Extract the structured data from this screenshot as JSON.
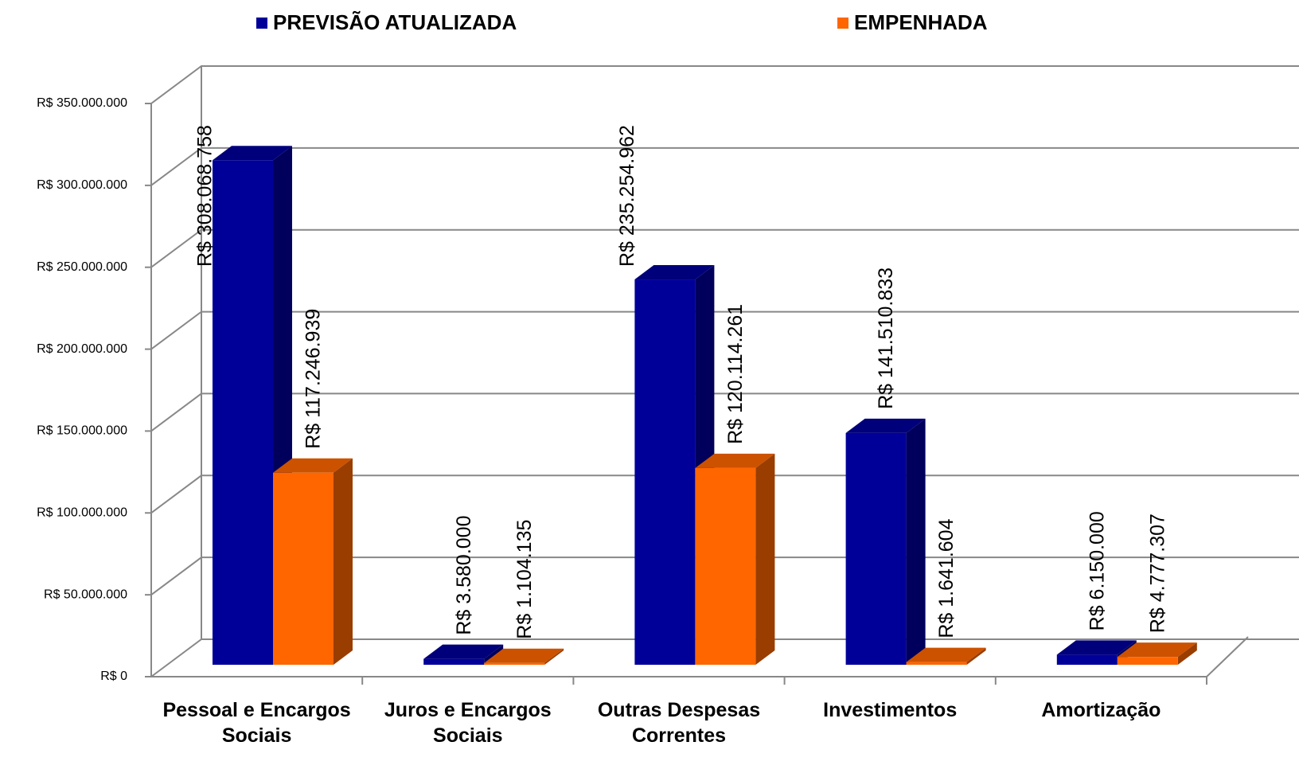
{
  "chart_data": {
    "type": "bar3d",
    "categories": [
      "Pessoal e Encargos Sociais",
      "Juros e Encargos Sociais",
      "Outras Despesas Correntes",
      "Investimentos",
      "Amortização"
    ],
    "series": [
      {
        "name": "PREVISÃO ATUALIZADA",
        "color": "#000099",
        "values": [
          308068758,
          3580000,
          235254962,
          141510833,
          6150000
        ],
        "value_labels": [
          "R$ 308.068.758",
          "R$ 3.580.000",
          "R$ 235.254.962",
          "R$ 141.510.833",
          "R$ 6.150.000"
        ]
      },
      {
        "name": "EMPENHADA",
        "color": "#ff6600",
        "values": [
          117246939,
          1104135,
          120114261,
          1641604,
          4777307
        ],
        "value_labels": [
          "R$ 117.246.939",
          "R$ 1.104.135",
          "R$ 120.114.261",
          "R$ 1.641.604",
          "R$ 4.777.307"
        ]
      }
    ],
    "ylim": [
      0,
      350000000
    ],
    "yticks": [
      {
        "value": 0,
        "label": "R$ 0"
      },
      {
        "value": 50000000,
        "label": "R$ 50.000.000"
      },
      {
        "value": 100000000,
        "label": "R$ 100.000.000"
      },
      {
        "value": 150000000,
        "label": "R$ 150.000.000"
      },
      {
        "value": 200000000,
        "label": "R$ 200.000.000"
      },
      {
        "value": 250000000,
        "label": "R$ 250.000.000"
      },
      {
        "value": 300000000,
        "label": "R$ 300.000.000"
      },
      {
        "value": 350000000,
        "label": "R$ 350.000.000"
      }
    ],
    "grid": true,
    "legend": "top"
  }
}
